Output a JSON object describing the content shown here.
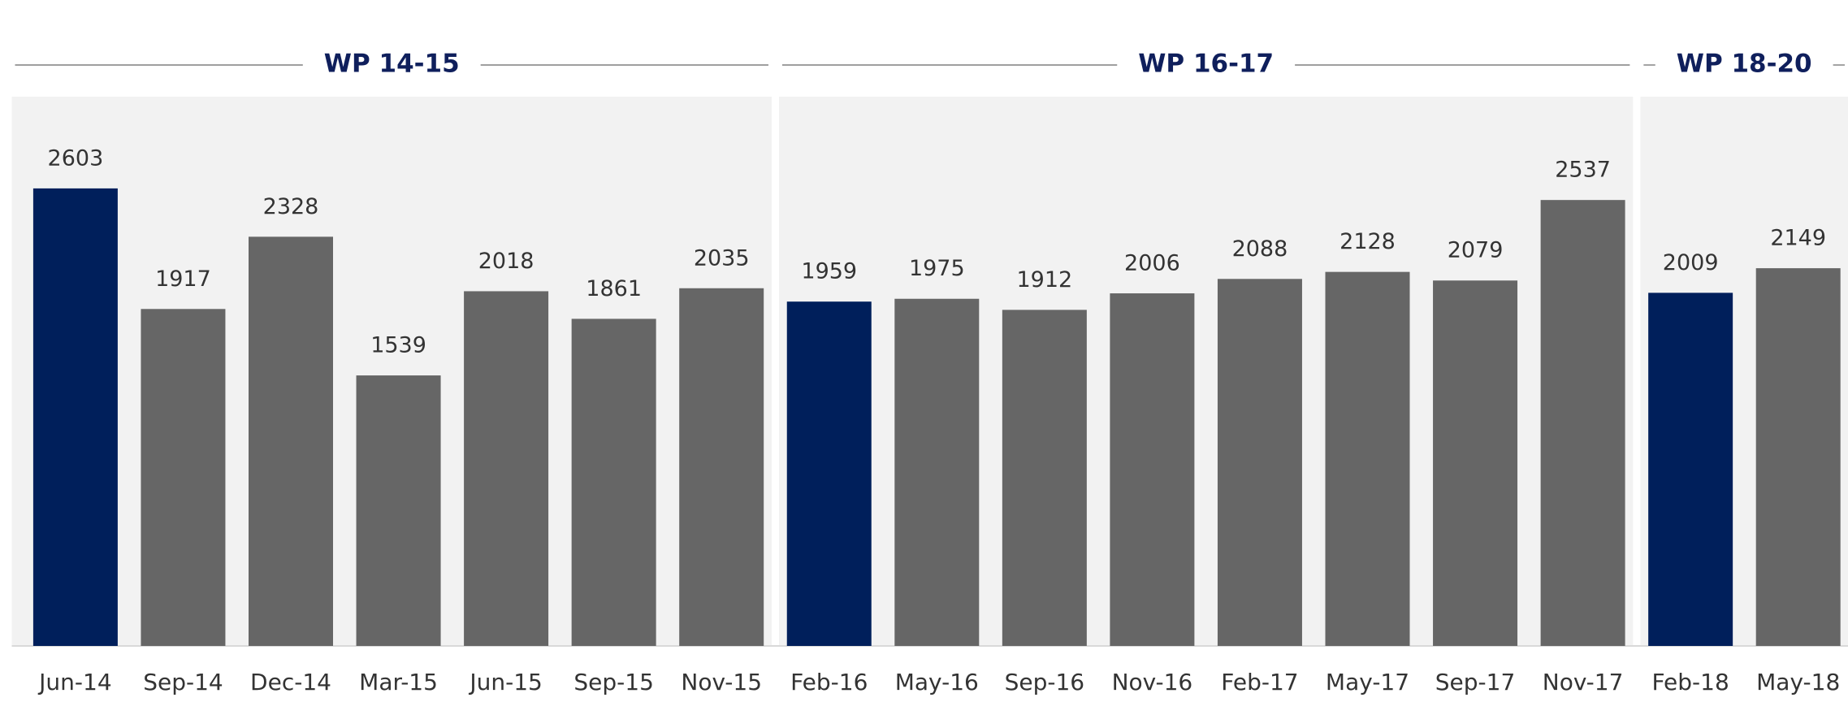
{
  "chart_data": {
    "type": "bar",
    "ylim": [
      0,
      3000
    ],
    "groups": [
      {
        "name": "WP 14-15",
        "categories": [
          "Jun-14",
          "Sep-14",
          "Dec-14",
          "Mar-15",
          "Jun-15",
          "Sep-15",
          "Nov-15"
        ],
        "values": [
          2603,
          1917,
          2328,
          1539,
          2018,
          1861,
          2035
        ],
        "colors": [
          "#001f5b",
          "#666666",
          "#666666",
          "#666666",
          "#666666",
          "#666666",
          "#666666"
        ]
      },
      {
        "name": "WP 16-17",
        "categories": [
          "Feb-16",
          "May-16",
          "Sep-16",
          "Nov-16",
          "Feb-17",
          "May-17",
          "Sep-17",
          "Nov-17"
        ],
        "values": [
          1959,
          1975,
          1912,
          2006,
          2088,
          2128,
          2079,
          2537
        ],
        "colors": [
          "#001f5b",
          "#666666",
          "#666666",
          "#666666",
          "#666666",
          "#666666",
          "#666666",
          "#666666"
        ]
      },
      {
        "name": "WP 18-20",
        "categories": [
          "Feb-18",
          "May-18"
        ],
        "values": [
          2009,
          2149
        ],
        "colors": [
          "#001f5b",
          "#666666"
        ]
      }
    ]
  }
}
